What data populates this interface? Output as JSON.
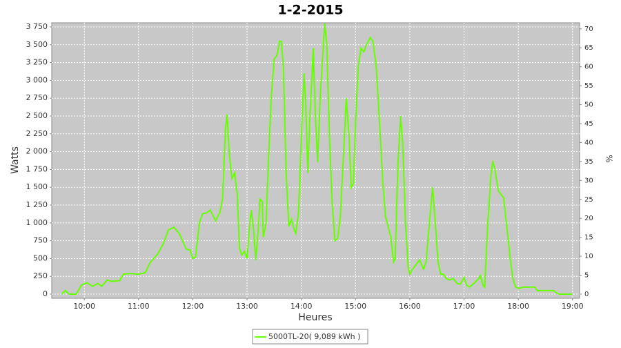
{
  "chart_data": {
    "type": "line",
    "title": "1-2-2015",
    "xlabel": "Heures",
    "ylabel": "Watts",
    "y2label": "%",
    "x": [
      9.58,
      9.65,
      9.72,
      9.85,
      9.95,
      10.05,
      10.15,
      10.25,
      10.32,
      10.42,
      10.5,
      10.65,
      10.72,
      10.85,
      11.0,
      11.12,
      11.22,
      11.35,
      11.45,
      11.55,
      11.65,
      11.75,
      11.88,
      11.95,
      12.0,
      12.05,
      12.12,
      12.18,
      12.25,
      12.32,
      12.42,
      12.5,
      12.55,
      12.6,
      12.63,
      12.67,
      12.72,
      12.77,
      12.82,
      12.86,
      12.9,
      12.95,
      13.0,
      13.05,
      13.08,
      13.12,
      13.16,
      13.2,
      13.24,
      13.28,
      13.3,
      13.35,
      13.4,
      13.45,
      13.5,
      13.55,
      13.6,
      13.63,
      13.67,
      13.72,
      13.77,
      13.82,
      13.87,
      13.9,
      13.95,
      14.0,
      14.05,
      14.08,
      14.12,
      14.16,
      14.22,
      14.26,
      14.3,
      14.35,
      14.4,
      14.43,
      14.47,
      14.52,
      14.57,
      14.62,
      14.67,
      14.72,
      14.78,
      14.83,
      14.88,
      14.92,
      14.96,
      15.0,
      15.05,
      15.1,
      15.15,
      15.2,
      15.27,
      15.32,
      15.38,
      15.45,
      15.5,
      15.55,
      15.6,
      15.65,
      15.7,
      15.73,
      15.78,
      15.83,
      15.87,
      15.92,
      15.97,
      16.0,
      16.05,
      16.12,
      16.18,
      16.25,
      16.3,
      16.35,
      16.42,
      16.47,
      16.52,
      16.57,
      16.62,
      16.67,
      16.73,
      16.8,
      16.87,
      16.93,
      17.0,
      17.05,
      17.1,
      17.18,
      17.27,
      17.3,
      17.35,
      17.38,
      17.43,
      17.5,
      17.53,
      17.57,
      17.63,
      17.68,
      17.73,
      17.78,
      17.85,
      17.9,
      17.95,
      18.0,
      18.1,
      18.3,
      18.35,
      18.65,
      18.7,
      18.75,
      19.0
    ],
    "series": [
      {
        "name": "5000TL-20( 9,089 kWh )",
        "color": "#66ff00",
        "values": [
          0,
          50,
          0,
          0,
          130,
          160,
          110,
          150,
          110,
          200,
          180,
          190,
          280,
          290,
          280,
          300,
          450,
          560,
          700,
          900,
          940,
          850,
          630,
          620,
          500,
          520,
          1000,
          1130,
          1140,
          1180,
          1030,
          1150,
          1350,
          2300,
          2520,
          2000,
          1620,
          1700,
          1400,
          650,
          550,
          600,
          500,
          1000,
          1180,
          900,
          480,
          850,
          1330,
          1300,
          800,
          1000,
          2000,
          2800,
          3300,
          3350,
          3550,
          3550,
          3200,
          1700,
          950,
          1050,
          900,
          850,
          1150,
          2200,
          3100,
          2700,
          1700,
          2500,
          3450,
          2500,
          1850,
          2800,
          3400,
          3800,
          3500,
          2200,
          1250,
          750,
          780,
          1100,
          2000,
          2750,
          2200,
          1500,
          1550,
          2400,
          3200,
          3450,
          3400,
          3500,
          3600,
          3550,
          3200,
          2300,
          1600,
          1100,
          950,
          800,
          450,
          500,
          1800,
          2500,
          2100,
          1000,
          380,
          280,
          350,
          420,
          480,
          350,
          450,
          900,
          1500,
          1000,
          450,
          280,
          280,
          220,
          200,
          220,
          150,
          140,
          230,
          120,
          100,
          150,
          220,
          260,
          120,
          100,
          900,
          1700,
          1870,
          1750,
          1450,
          1400,
          1350,
          1000,
          500,
          220,
          100,
          80,
          100,
          100,
          50,
          50,
          20,
          0,
          0
        ]
      }
    ],
    "xlim": [
      9.4,
      19.13
    ],
    "xticks": [
      {
        "value": 10,
        "label": "10:00"
      },
      {
        "value": 11,
        "label": "11:00"
      },
      {
        "value": 12,
        "label": "12:00"
      },
      {
        "value": 13,
        "label": "13:00"
      },
      {
        "value": 14,
        "label": "14:00"
      },
      {
        "value": 15,
        "label": "15:00"
      },
      {
        "value": 16,
        "label": "16:00"
      },
      {
        "value": 17,
        "label": "17:00"
      },
      {
        "value": 18,
        "label": "18:00"
      },
      {
        "value": 19,
        "label": "19:00"
      }
    ],
    "ylim": [
      -58,
      3808
    ],
    "yticks": [
      0,
      250,
      500,
      750,
      {
        "value": 1000,
        "label": "1 000"
      },
      {
        "value": 1250,
        "label": "1 250"
      },
      {
        "value": 1500,
        "label": "1 500"
      },
      {
        "value": 1750,
        "label": "1 750"
      },
      {
        "value": 2000,
        "label": "2 000"
      },
      {
        "value": 2250,
        "label": "2 250"
      },
      {
        "value": 2500,
        "label": "2 500"
      },
      {
        "value": 2750,
        "label": "2 750"
      },
      {
        "value": 3000,
        "label": "3 000"
      },
      {
        "value": 3250,
        "label": "3 250"
      },
      {
        "value": 3500,
        "label": "3 500"
      },
      {
        "value": 3750,
        "label": "3 750"
      }
    ],
    "y2lim": [
      -1.1,
      71.6
    ],
    "y2ticks": [
      0,
      5,
      10,
      15,
      20,
      25,
      30,
      35,
      40,
      45,
      50,
      55,
      60,
      65,
      70
    ],
    "grid": true,
    "legend": "bottom"
  }
}
